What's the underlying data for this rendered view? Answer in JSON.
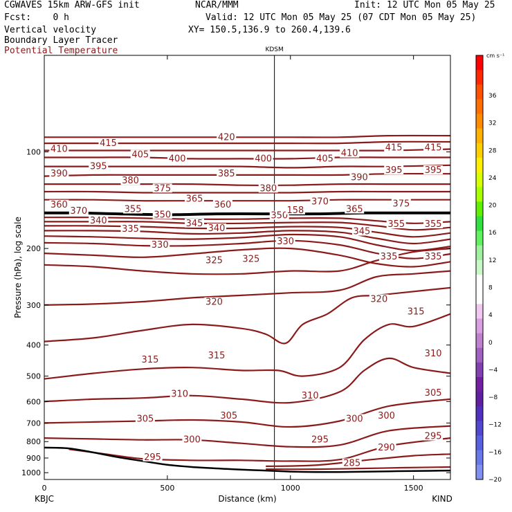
{
  "header": {
    "model": "CGWAVES 15km ARW-GFS init",
    "forecast": "Fcst:    0 h",
    "field1": "Vertical velocity",
    "field2": "Boundary Layer Tracer",
    "field3": "Potential Temperature",
    "center": "NCAR/MMM",
    "init": "Init: 12 UTC Mon 05 May 25",
    "valid": "Valid: 12 UTC Mon 05 May 25 (07 CDT Mon 05 May 25)",
    "xy": "XY= 150.5,136.9 to 260.4,139.6",
    "field3_color": "#8b1a1a"
  },
  "chart_data": {
    "type": "line",
    "title": "",
    "xlabel": "Distance (km)",
    "ylabel": "Pressure (hPa), log scale",
    "xlim": [
      0,
      1650
    ],
    "ylim": [
      1050,
      50
    ],
    "y_log_scale": true,
    "x_ticks": [
      0,
      500,
      1000,
      1500
    ],
    "y_ticks": [
      100,
      200,
      300,
      400,
      500,
      600,
      700,
      800,
      900,
      1000
    ],
    "endpoint_labels": {
      "left": "KBJC",
      "right": "KIND"
    },
    "station_marker": {
      "name": "KDSM",
      "x": 935
    },
    "contour_color": "#8b1a1a",
    "tropopause": {
      "x": [
        0,
        150,
        300,
        500,
        700,
        900,
        1100,
        1300,
        1500,
        1650
      ],
      "p": [
        155,
        155,
        156,
        157,
        156,
        156,
        156,
        155,
        155,
        155
      ]
    },
    "terrain": {
      "x": [
        0,
        100,
        200,
        300,
        400,
        500,
        600,
        700,
        800,
        900,
        1000,
        1100,
        1200,
        1300,
        1400,
        1500,
        1650
      ],
      "p": [
        835,
        840,
        865,
        895,
        920,
        945,
        960,
        970,
        978,
        985,
        992,
        995,
        995,
        993,
        990,
        988,
        985
      ]
    },
    "isentropes": [
      {
        "theta": 285,
        "x": [
          900,
          1100,
          1300,
          1450,
          1650
        ],
        "p": [
          975,
          975,
          970,
          965,
          960
        ]
      },
      {
        "theta": 290,
        "x": [
          900,
          1100,
          1300,
          1500,
          1650
        ],
        "p": [
          955,
          948,
          915,
          885,
          875
        ]
      },
      {
        "theta": 295,
        "x": [
          100,
          250,
          400,
          600,
          800,
          1000,
          1200,
          1400,
          1650
        ],
        "p": [
          845,
          875,
          905,
          915,
          915,
          920,
          910,
          825,
          780
        ]
      },
      {
        "theta": 300,
        "x": [
          0,
          200,
          400,
          600,
          800,
          1000,
          1200,
          1400,
          1650
        ],
        "p": [
          780,
          785,
          790,
          790,
          810,
          830,
          820,
          740,
          715
        ]
      },
      {
        "theta": 305,
        "x": [
          0,
          200,
          400,
          600,
          800,
          1000,
          1200,
          1400,
          1650
        ],
        "p": [
          700,
          695,
          690,
          685,
          695,
          720,
          690,
          620,
          590
        ]
      },
      {
        "theta": 310,
        "x": [
          0,
          200,
          400,
          600,
          800,
          1000,
          1200,
          1300,
          1400,
          1500,
          1650
        ],
        "p": [
          600,
          590,
          585,
          575,
          590,
          605,
          560,
          480,
          440,
          470,
          490
        ]
      },
      {
        "theta": 315,
        "x": [
          0,
          200,
          400,
          600,
          800,
          950,
          1050,
          1200,
          1300,
          1400,
          1500,
          1650
        ],
        "p": [
          510,
          490,
          475,
          470,
          480,
          480,
          500,
          470,
          385,
          345,
          350,
          320
        ]
      },
      {
        "theta": 320,
        "x": [
          0,
          200,
          400,
          600,
          800,
          900,
          980,
          1050,
          1150,
          1250,
          1350,
          1450,
          1650
        ],
        "p": [
          390,
          380,
          360,
          345,
          355,
          370,
          395,
          345,
          320,
          285,
          280,
          275,
          265
        ]
      },
      {
        "theta": 325,
        "x": [
          0,
          200,
          400,
          600,
          800,
          1000,
          1200,
          1350,
          1500,
          1650
        ],
        "p": [
          300,
          298,
          293,
          285,
          280,
          275,
          270,
          245,
          240,
          235
        ]
      },
      {
        "theta": 330,
        "x": [
          0,
          200,
          400,
          600,
          800,
          1000,
          1200,
          1350,
          1500,
          1650
        ],
        "p": [
          225,
          228,
          235,
          240,
          240,
          235,
          235,
          218,
          205,
          200
        ]
      },
      {
        "theta": 335,
        "x": [
          0,
          200,
          400,
          600,
          800,
          1000,
          1200,
          1350,
          1500,
          1650
        ],
        "p": [
          207,
          210,
          213,
          208,
          202,
          200,
          210,
          223,
          228,
          220
        ]
      },
      {
        "theta": 340,
        "x": [
          0,
          200,
          400,
          600,
          800,
          1000,
          1200,
          1350,
          1500,
          1650
        ],
        "p": [
          192,
          193,
          196,
          196,
          193,
          189,
          195,
          207,
          215,
          208
        ]
      },
      {
        "theta": 345,
        "x": [
          0,
          200,
          400,
          600,
          800,
          1000,
          1200,
          1350,
          1500,
          1650
        ],
        "p": [
          183,
          184,
          186,
          187,
          185,
          181,
          184,
          195,
          203,
          197
        ]
      },
      {
        "theta": 350,
        "x": [
          0,
          200,
          400,
          600,
          800,
          1000,
          1200,
          1350,
          1500,
          1650
        ],
        "p": [
          176,
          176,
          177,
          180,
          179,
          176,
          178,
          186,
          193,
          187
        ]
      },
      {
        "theta": 355,
        "x": [
          0,
          200,
          400,
          600,
          800,
          1000,
          1200,
          1350,
          1500,
          1650
        ],
        "p": [
          170,
          170,
          171,
          173,
          173,
          171,
          172,
          178,
          184,
          179
        ]
      },
      {
        "theta": 360,
        "x": [
          0,
          200,
          400,
          600,
          800,
          1000,
          1200,
          1350,
          1500,
          1650
        ],
        "p": [
          165,
          165,
          165,
          167,
          167,
          166,
          166,
          170,
          175,
          172
        ]
      },
      {
        "theta": 365,
        "x": [
          0,
          200,
          400,
          600,
          800,
          1000,
          1200,
          1350,
          1500,
          1650
        ],
        "p": [
          160,
          160,
          161,
          162,
          162,
          161,
          161,
          164,
          167,
          165
        ]
      },
      {
        "theta": 380,
        "x": [
          0,
          200,
          400,
          600,
          800,
          1000,
          1200,
          1400,
          1650
        ],
        "p": [
          141,
          141,
          142,
          142,
          142,
          142,
          141,
          141,
          141
        ]
      },
      {
        "theta": 385,
        "x": [
          0,
          200,
          400,
          600,
          800,
          1000,
          1200,
          1400,
          1650
        ],
        "p": [
          133,
          133,
          134,
          134,
          134,
          134,
          133,
          133,
          133
        ]
      },
      {
        "theta": 390,
        "x": [
          0,
          200,
          400,
          600,
          800,
          1000,
          1200,
          1400,
          1650
        ],
        "p": [
          126,
          126,
          126,
          126,
          127,
          127,
          126,
          126,
          126
        ]
      },
      {
        "theta": 395,
        "x": [
          0,
          200,
          400,
          600,
          800,
          1000,
          1200,
          1400,
          1650
        ],
        "p": [
          119,
          118,
          118,
          118,
          118,
          118,
          118,
          117,
          117
        ]
      },
      {
        "theta": 400,
        "x": [
          0,
          200,
          400,
          600,
          800,
          1000,
          1200,
          1400,
          1650
        ],
        "p": [
          111,
          111,
          111,
          111,
          111,
          112,
          111,
          111,
          110
        ]
      },
      {
        "theta": 405,
        "x": [
          0,
          200,
          400,
          600,
          800,
          1000,
          1200,
          1400,
          1650
        ],
        "p": [
          104,
          104,
          104,
          105,
          105,
          105,
          104,
          104,
          104
        ]
      },
      {
        "theta": 410,
        "x": [
          0,
          200,
          400,
          600,
          800,
          1000,
          1200,
          1400,
          1650
        ],
        "p": [
          99,
          99,
          99,
          99,
          99,
          99,
          99,
          99,
          98
        ]
      },
      {
        "theta": 415,
        "x": [
          0,
          200,
          400,
          600,
          800,
          1000,
          1200,
          1400,
          1650
        ],
        "p": [
          94,
          94,
          94,
          94,
          94,
          94,
          94,
          93,
          93
        ]
      },
      {
        "theta": 420,
        "x": [
          0,
          200,
          400,
          600,
          800,
          1000,
          1200,
          1400,
          1650
        ],
        "p": [
          90,
          90,
          90,
          90,
          90,
          90,
          90,
          89,
          89
        ]
      }
    ],
    "contour_labels": [
      {
        "text": "420",
        "x": 740,
        "p": 90
      },
      {
        "text": "415",
        "x": 260,
        "p": 94
      },
      {
        "text": "415",
        "x": 1420,
        "p": 97
      },
      {
        "text": "415",
        "x": 1580,
        "p": 97
      },
      {
        "text": "410",
        "x": 60,
        "p": 98
      },
      {
        "text": "410",
        "x": 1240,
        "p": 101
      },
      {
        "text": "405",
        "x": 390,
        "p": 102
      },
      {
        "text": "405",
        "x": 1140,
        "p": 105
      },
      {
        "text": "400",
        "x": 540,
        "p": 105
      },
      {
        "text": "400",
        "x": 890,
        "p": 105
      },
      {
        "text": "395",
        "x": 220,
        "p": 111
      },
      {
        "text": "395",
        "x": 1420,
        "p": 114
      },
      {
        "text": "395",
        "x": 1580,
        "p": 114
      },
      {
        "text": "390",
        "x": 60,
        "p": 117
      },
      {
        "text": "390",
        "x": 1280,
        "p": 120
      },
      {
        "text": "385",
        "x": 740,
        "p": 117
      },
      {
        "text": "380",
        "x": 350,
        "p": 123
      },
      {
        "text": "380",
        "x": 910,
        "p": 130
      },
      {
        "text": "375",
        "x": 480,
        "p": 130
      },
      {
        "text": "375",
        "x": 1450,
        "p": 145
      },
      {
        "text": "370",
        "x": 1120,
        "p": 143
      },
      {
        "text": "365",
        "x": 610,
        "p": 140
      },
      {
        "text": "365",
        "x": 1260,
        "p": 151
      },
      {
        "text": "360",
        "x": 60,
        "p": 146
      },
      {
        "text": "360",
        "x": 725,
        "p": 146
      },
      {
        "text": "355",
        "x": 360,
        "p": 151
      },
      {
        "text": "355",
        "x": 1430,
        "p": 168
      },
      {
        "text": "355",
        "x": 1580,
        "p": 168
      },
      {
        "text": "350",
        "x": 480,
        "p": 157
      },
      {
        "text": "350",
        "x": 955,
        "p": 158
      },
      {
        "text": "345",
        "x": 610,
        "p": 167
      },
      {
        "text": "345",
        "x": 1290,
        "p": 177
      },
      {
        "text": "340",
        "x": 220,
        "p": 164
      },
      {
        "text": "340",
        "x": 700,
        "p": 173
      },
      {
        "text": "335",
        "x": 350,
        "p": 174
      },
      {
        "text": "335",
        "x": 1400,
        "p": 212
      },
      {
        "text": "335",
        "x": 1580,
        "p": 212
      },
      {
        "text": "330",
        "x": 470,
        "p": 195
      },
      {
        "text": "330",
        "x": 980,
        "p": 190
      },
      {
        "text": "325",
        "x": 690,
        "p": 218
      },
      {
        "text": "325",
        "x": 840,
        "p": 216
      },
      {
        "text": "320",
        "x": 690,
        "p": 294
      },
      {
        "text": "320",
        "x": 1360,
        "p": 288
      },
      {
        "text": "315",
        "x": 430,
        "p": 445
      },
      {
        "text": "315",
        "x": 700,
        "p": 432
      },
      {
        "text": "315",
        "x": 1510,
        "p": 315
      },
      {
        "text": "310",
        "x": 550,
        "p": 568
      },
      {
        "text": "310",
        "x": 1080,
        "p": 575
      },
      {
        "text": "310",
        "x": 1580,
        "p": 425
      },
      {
        "text": "305",
        "x": 410,
        "p": 680
      },
      {
        "text": "305",
        "x": 750,
        "p": 665
      },
      {
        "text": "305",
        "x": 1580,
        "p": 565
      },
      {
        "text": "300",
        "x": 600,
        "p": 790
      },
      {
        "text": "300",
        "x": 1260,
        "p": 680
      },
      {
        "text": "300",
        "x": 1390,
        "p": 665
      },
      {
        "text": "295",
        "x": 440,
        "p": 895
      },
      {
        "text": "295",
        "x": 1120,
        "p": 790
      },
      {
        "text": "295",
        "x": 1580,
        "p": 770
      },
      {
        "text": "290",
        "x": 1390,
        "p": 835
      },
      {
        "text": "285",
        "x": 1250,
        "p": 935
      },
      {
        "text": "370",
        "x": 140,
        "p": 153
      },
      {
        "text": "158",
        "x": 1020,
        "p": 152
      }
    ]
  },
  "colorbar": {
    "unit": "cm s⁻¹",
    "labels": [
      "36",
      "32",
      "28",
      "24",
      "20",
      "16",
      "12",
      "8",
      "4",
      "0",
      "−4",
      "−8",
      "−12",
      "−16",
      "−20"
    ],
    "colors": [
      "#ff0000",
      "#ff2800",
      "#ff5000",
      "#ff6e00",
      "#ff8c00",
      "#ffb000",
      "#ffd000",
      "#fff000",
      "#d8ff00",
      "#a8ff00",
      "#60f000",
      "#30e040",
      "#60f060",
      "#a0f0a0",
      "#c8f8c8",
      "#ffffff",
      "#ffffff",
      "#f0c8f0",
      "#d8a0e0",
      "#c080d0",
      "#a060c0",
      "#8040b0",
      "#7020a0",
      "#6020a0",
      "#5030c0",
      "#5048d0",
      "#5860e0",
      "#6878e8",
      "#8090f0"
    ]
  }
}
